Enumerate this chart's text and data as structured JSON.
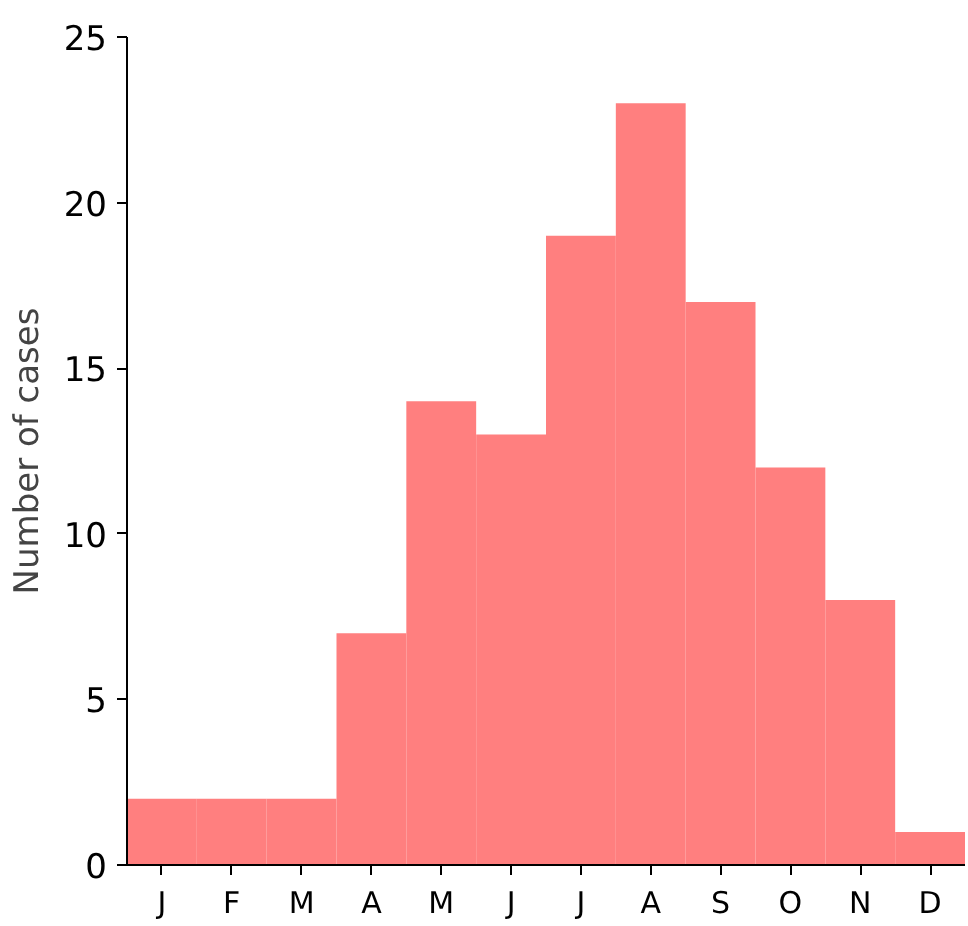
{
  "chart_data": {
    "type": "bar",
    "ylabel": "Number of cases",
    "categories": [
      "J",
      "F",
      "M",
      "A",
      "M",
      "J",
      "J",
      "A",
      "S",
      "O",
      "N",
      "D"
    ],
    "values": [
      2,
      2,
      2,
      7,
      14,
      13,
      19,
      23,
      17,
      12,
      8,
      1
    ],
    "color": "#ff7f7f",
    "ylim": [
      0,
      25
    ],
    "yticks": [
      0,
      5,
      10,
      15,
      20,
      25
    ],
    "grid": false
  }
}
